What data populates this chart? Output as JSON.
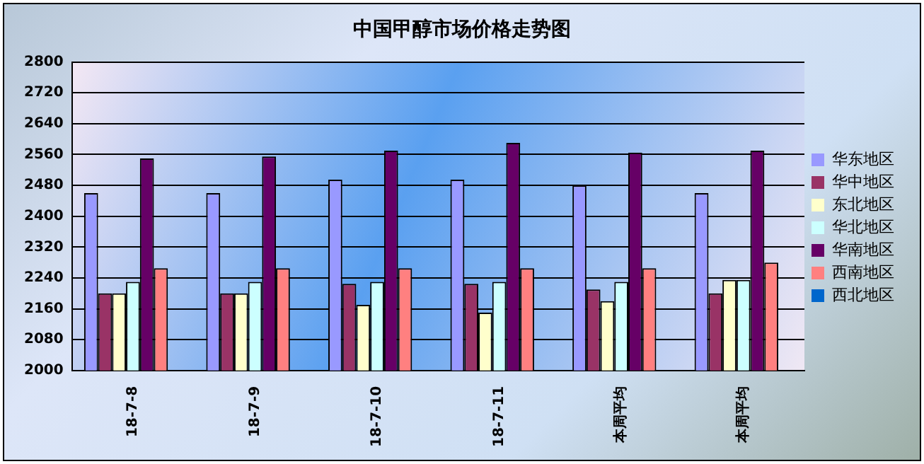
{
  "chart_data": {
    "type": "bar",
    "title": "中国甲醇市场价格走势图",
    "categories": [
      "18-7-8",
      "18-7-9",
      "18-7-10",
      "18-7-11",
      "本周平均",
      "本周平均"
    ],
    "series": [
      {
        "name": "华东地区",
        "color": "#9999ff",
        "values": [
          2460,
          2460,
          2495,
          2495,
          2480,
          2460
        ]
      },
      {
        "name": "华中地区",
        "color": "#993366",
        "values": [
          2200,
          2200,
          2225,
          2225,
          2210,
          2200
        ]
      },
      {
        "name": "东北地区",
        "color": "#ffffcc",
        "values": [
          2200,
          2200,
          2170,
          2150,
          2180,
          2235
        ]
      },
      {
        "name": "华北地区",
        "color": "#ccffff",
        "values": [
          2230,
          2230,
          2230,
          2230,
          2230,
          2235
        ]
      },
      {
        "name": "华南地区",
        "color": "#660066",
        "values": [
          2550,
          2555,
          2570,
          2590,
          2565,
          2570
        ]
      },
      {
        "name": "西南地区",
        "color": "#ff8080",
        "values": [
          2265,
          2265,
          2265,
          2265,
          2265,
          2280
        ]
      },
      {
        "name": "西北地区",
        "color": "#0066cc",
        "values": [
          null,
          null,
          null,
          null,
          null,
          null
        ]
      }
    ],
    "ylim": [
      2000,
      2800
    ],
    "yticks": [
      2000,
      2080,
      2160,
      2240,
      2320,
      2400,
      2480,
      2560,
      2640,
      2720,
      2800
    ],
    "grid": "y",
    "legend": "right"
  }
}
